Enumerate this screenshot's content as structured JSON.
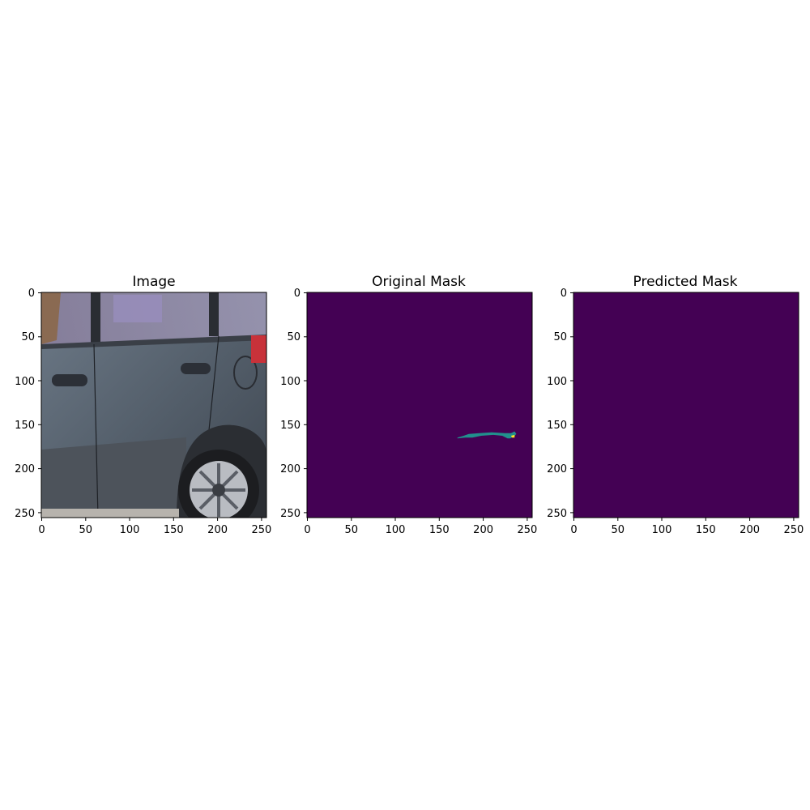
{
  "figure": {
    "panels": [
      {
        "key": "image",
        "title": "Image",
        "content": "photo of a dark grey car side with two door handles, fuel cap and rear wheel"
      },
      {
        "key": "original",
        "title": "Original Mask",
        "content": "mask with one teal scratch region"
      },
      {
        "key": "predicted",
        "title": "Predicted Mask",
        "content": "empty mask"
      }
    ],
    "x_ticks": [
      "0",
      "50",
      "100",
      "150",
      "200",
      "250"
    ],
    "y_ticks": [
      "0",
      "50",
      "100",
      "150",
      "200",
      "250"
    ],
    "colors": {
      "mask_background": "#440154",
      "mask_foreground": "#21908d",
      "mask_highlight": "#fde725"
    }
  },
  "chart_data": [
    {
      "type": "heatmap",
      "title": "Image",
      "xlim": [
        0,
        256
      ],
      "ylim": [
        256,
        0
      ],
      "x_ticks": [
        0,
        50,
        100,
        150,
        200,
        250
      ],
      "y_ticks": [
        0,
        50,
        100,
        150,
        200,
        250
      ]
    },
    {
      "type": "heatmap",
      "title": "Original Mask",
      "xlim": [
        0,
        256
      ],
      "ylim": [
        256,
        0
      ],
      "x_ticks": [
        0,
        50,
        100,
        150,
        200,
        250
      ],
      "y_ticks": [
        0,
        50,
        100,
        150,
        200,
        250
      ],
      "regions": [
        {
          "label_value": 1,
          "color": "#21908d",
          "polygon": [
            [
              171,
              165
            ],
            [
              178,
              163
            ],
            [
              184,
              161
            ],
            [
              196,
              160
            ],
            [
              210,
              159
            ],
            [
              225,
              160
            ],
            [
              232,
              160
            ],
            [
              236,
              158
            ],
            [
              238,
              161
            ],
            [
              235,
              164
            ],
            [
              231,
              166
            ],
            [
              228,
              166
            ],
            [
              222,
              163
            ],
            [
              212,
              162
            ],
            [
              198,
              163
            ],
            [
              188,
              165
            ],
            [
              180,
              165
            ],
            [
              171,
              166
            ]
          ]
        },
        {
          "label_value": 2,
          "color": "#fde725",
          "polygon": [
            [
              232,
              163
            ],
            [
              236,
              162
            ],
            [
              236,
              165
            ],
            [
              233,
              165
            ]
          ]
        }
      ]
    },
    {
      "type": "heatmap",
      "title": "Predicted Mask",
      "xlim": [
        0,
        256
      ],
      "ylim": [
        256,
        0
      ],
      "x_ticks": [
        0,
        50,
        100,
        150,
        200,
        250
      ],
      "y_ticks": [
        0,
        50,
        100,
        150,
        200,
        250
      ],
      "regions": []
    }
  ]
}
